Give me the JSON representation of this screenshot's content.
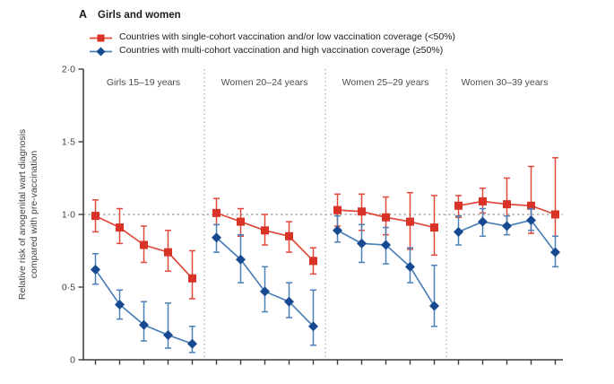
{
  "colors": {
    "background": "#ffffff",
    "axis": "#3c3c3c",
    "tick_text": "#414141",
    "title_text": "#1c1c1c",
    "reference_line": "#9b9b9b",
    "panel_separator": "#ababab",
    "red_marker": "#d93327",
    "red_line": "#e0483a",
    "blue_marker": "#16498f",
    "blue_line": "#4d80b7"
  },
  "chart_data": {
    "type": "line",
    "title_marker": "A",
    "title": "Girls and women",
    "ylabel_lines": [
      "Relative risk of anogenital wart diagnosis",
      "compared with pre-vaccination"
    ],
    "y_axis": {
      "min": 0,
      "max": 2.0,
      "ticks": [
        {
          "value": 2.0,
          "label": "2·0"
        },
        {
          "value": 1.5,
          "label": "1·5"
        },
        {
          "value": 1.0,
          "label": "1·0"
        },
        {
          "value": 0.5,
          "label": "0·5"
        },
        {
          "value": 0,
          "label": "0"
        }
      ]
    },
    "x_axis": {
      "ticks_per_panel": 5,
      "tick_labels_visible": false
    },
    "reference_line": 1.0,
    "grid": false,
    "legend_position": "top-left",
    "legend": [
      {
        "series": "single_cohort_low_coverage",
        "label": "Countries with single-cohort vaccination and/or low vaccination coverage (<50%)",
        "marker": "square",
        "color": "#d93327",
        "line_color": "#e0483a"
      },
      {
        "series": "multi_cohort_high_coverage",
        "label": "Countries with multi-cohort vaccination and high vaccination coverage (≥50%)",
        "marker": "diamond",
        "color": "#16498f",
        "line_color": "#4d80b7"
      }
    ],
    "panels": [
      {
        "label": "Girls 15–19 years",
        "series": [
          {
            "name": "single_cohort_low_coverage",
            "values": [
              0.99,
              0.91,
              0.79,
              0.74,
              0.56
            ],
            "ci_low": [
              0.88,
              0.8,
              0.67,
              0.61,
              0.42
            ],
            "ci_high": [
              1.1,
              1.04,
              0.92,
              0.89,
              0.75
            ]
          },
          {
            "name": "multi_cohort_high_coverage",
            "values": [
              0.62,
              0.38,
              0.24,
              0.17,
              0.11
            ],
            "ci_low": [
              0.52,
              0.28,
              0.13,
              0.08,
              0.05
            ],
            "ci_high": [
              0.73,
              0.48,
              0.4,
              0.39,
              0.23
            ]
          }
        ]
      },
      {
        "label": "Women 20–24 years",
        "series": [
          {
            "name": "single_cohort_low_coverage",
            "values": [
              1.01,
              0.95,
              0.89,
              0.85,
              0.68
            ],
            "ci_low": [
              0.93,
              0.85,
              0.79,
              0.74,
              0.59
            ],
            "ci_high": [
              1.11,
              1.04,
              1.0,
              0.95,
              0.77
            ]
          },
          {
            "name": "multi_cohort_high_coverage",
            "values": [
              0.84,
              0.69,
              0.47,
              0.4,
              0.23
            ],
            "ci_low": [
              0.74,
              0.53,
              0.33,
              0.29,
              0.1
            ],
            "ci_high": [
              0.93,
              0.86,
              0.64,
              0.53,
              0.48
            ]
          }
        ]
      },
      {
        "label": "Women 25–29 years",
        "series": [
          {
            "name": "single_cohort_low_coverage",
            "values": [
              1.03,
              1.02,
              0.98,
              0.95,
              0.91
            ],
            "ci_low": [
              0.92,
              0.89,
              0.86,
              0.76,
              0.72
            ],
            "ci_high": [
              1.14,
              1.14,
              1.12,
              1.15,
              1.13
            ]
          },
          {
            "name": "multi_cohort_high_coverage",
            "values": [
              0.89,
              0.8,
              0.79,
              0.64,
              0.37
            ],
            "ci_low": [
              0.81,
              0.67,
              0.66,
              0.53,
              0.23
            ],
            "ci_high": [
              0.99,
              0.93,
              0.91,
              0.77,
              0.65
            ]
          }
        ]
      },
      {
        "label": "Women 30–39 years",
        "series": [
          {
            "name": "single_cohort_low_coverage",
            "values": [
              1.06,
              1.09,
              1.07,
              1.06,
              1.0
            ],
            "ci_low": [
              0.98,
              1.01,
              0.93,
              0.87,
              0.85
            ],
            "ci_high": [
              1.13,
              1.18,
              1.25,
              1.33,
              1.39
            ]
          },
          {
            "name": "multi_cohort_high_coverage",
            "values": [
              0.88,
              0.95,
              0.92,
              0.96,
              0.74
            ],
            "ci_low": [
              0.79,
              0.85,
              0.86,
              0.89,
              0.64
            ],
            "ci_high": [
              0.99,
              1.04,
              0.99,
              1.04,
              0.85
            ]
          }
        ]
      }
    ]
  }
}
